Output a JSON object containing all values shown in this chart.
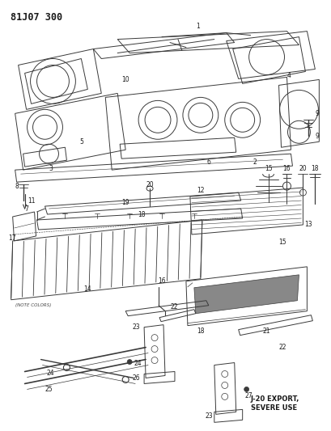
{
  "title": "81J07 300",
  "bg_color": "#ffffff",
  "text_color": "#1a1a1a",
  "fig_width": 4.09,
  "fig_height": 5.33,
  "dpi": 100,
  "line_color": "#3a3a3a",
  "label_fontsize": 5.5,
  "title_fontsize": 8.5,
  "note_text": "(NOTE COLORS)",
  "export_text": "J-20 EXPORT,\nSEVERE USE"
}
